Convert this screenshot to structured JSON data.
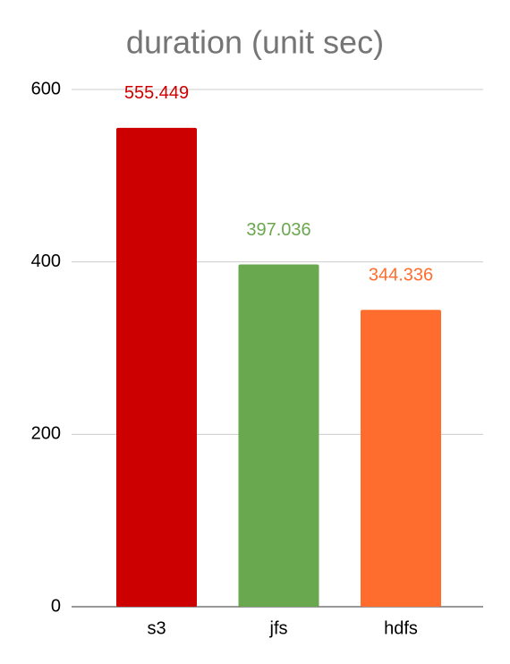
{
  "chart_data": {
    "type": "bar",
    "title": "duration (unit sec)",
    "categories": [
      "s3",
      "jfs",
      "hdfs"
    ],
    "values": [
      555.449,
      397.036,
      344.336
    ],
    "colors": [
      "#cc0000",
      "#6aa84f",
      "#ff6d2e"
    ],
    "ylim": [
      0,
      600
    ],
    "yticks": [
      0,
      200,
      400,
      600
    ],
    "grid": true
  }
}
